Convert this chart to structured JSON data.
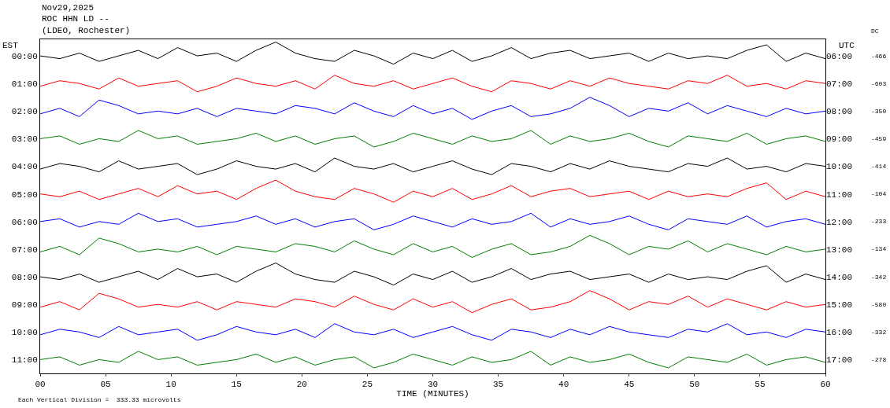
{
  "chart_data": {
    "type": "line",
    "title": "Nov29,2025",
    "subtitle": "ROC HHN LD --\n(LDEO, Rochester)",
    "xlabel": "TIME (MINUTES)",
    "ylabel": "EST",
    "y2label": "UTC",
    "annotations": [
      "Each Vertical Division =  333.33 microvolts",
      "DC",
      "-466",
      "-603",
      "-350",
      "-459",
      "-414",
      "-104",
      "-233",
      "-134",
      "-342",
      "-580",
      "-332",
      "-278"
    ],
    "x": [
      0,
      1.5,
      3,
      4.5,
      6,
      7.5,
      9,
      10.5,
      12,
      13.5,
      15,
      16.5,
      18,
      19.5,
      21,
      22.5,
      24,
      25.5,
      27,
      28.5,
      30,
      31.5,
      33,
      34.5,
      36,
      37.5,
      39,
      40.5,
      42,
      43.5,
      45,
      46.5,
      48,
      49.5,
      51,
      52.5,
      54,
      55.5,
      57,
      58.5,
      60
    ],
    "xlim": [
      0,
      60
    ],
    "xticks": [
      {
        "value": 0,
        "label": "00"
      },
      {
        "value": 5,
        "label": "05"
      },
      {
        "value": 10,
        "label": "10"
      },
      {
        "value": 15,
        "label": "15"
      },
      {
        "value": 20,
        "label": "20"
      },
      {
        "value": 25,
        "label": "25"
      },
      {
        "value": 30,
        "label": "30"
      },
      {
        "value": 35,
        "label": "35"
      },
      {
        "value": 40,
        "label": "40"
      },
      {
        "value": 45,
        "label": "45"
      },
      {
        "value": 50,
        "label": "50"
      },
      {
        "value": 55,
        "label": "55"
      },
      {
        "value": 60,
        "label": "60"
      }
    ],
    "ylim": [
      11.5,
      -0.6
    ],
    "yticks": [
      {
        "value": 0,
        "label": "00:00"
      },
      {
        "value": 1,
        "label": "01:00"
      },
      {
        "value": 2,
        "label": "02:00"
      },
      {
        "value": 3,
        "label": "03:00"
      },
      {
        "value": 4,
        "label": "04:00"
      },
      {
        "value": 5,
        "label": "05:00"
      },
      {
        "value": 6,
        "label": "06:00"
      },
      {
        "value": 7,
        "label": "07:00"
      },
      {
        "value": 8,
        "label": "08:00"
      },
      {
        "value": 9,
        "label": "09:00"
      },
      {
        "value": 10,
        "label": "10:00"
      },
      {
        "value": 11,
        "label": "11:00"
      }
    ],
    "y2lim": [
      17.5,
      5.4
    ],
    "y2ticks": [
      {
        "value": 6,
        "label": "06:00"
      },
      {
        "value": 7,
        "label": "07:00"
      },
      {
        "value": 8,
        "label": "08:00"
      },
      {
        "value": 9,
        "label": "09:00"
      },
      {
        "value": 10,
        "label": "10:00"
      },
      {
        "value": 11,
        "label": "11:00"
      },
      {
        "value": 12,
        "label": "12:00"
      },
      {
        "value": 13,
        "label": "13:00"
      },
      {
        "value": 14,
        "label": "14:00"
      },
      {
        "value": 15,
        "label": "15:00"
      },
      {
        "value": 16,
        "label": "16:00"
      },
      {
        "value": 17,
        "label": "17:00"
      }
    ],
    "grid": false,
    "marker": "none",
    "line_style": "solid",
    "series": [
      {
        "color": "#000000",
        "values": [
          0.0,
          0.1,
          -0.1,
          0.2,
          0.0,
          -0.2,
          0.1,
          -0.3,
          0.0,
          -0.1,
          0.2,
          -0.2,
          -0.5,
          -0.1,
          0.1,
          0.2,
          -0.2,
          0.0,
          0.3,
          -0.1,
          0.1,
          -0.2,
          0.2,
          0.0,
          -0.3,
          0.1,
          -0.1,
          -0.2,
          0.1,
          0.0,
          -0.1,
          0.2,
          -0.1,
          0.1,
          0.0,
          0.1,
          -0.2,
          -0.4,
          0.2,
          -0.1,
          0.1
        ]
      },
      {
        "color": "#ff0000",
        "values": [
          1.1,
          0.9,
          1.0,
          1.2,
          0.8,
          1.1,
          1.0,
          0.9,
          1.3,
          1.1,
          0.8,
          1.0,
          1.1,
          0.9,
          1.2,
          0.7,
          1.0,
          1.1,
          0.9,
          1.2,
          1.0,
          0.8,
          1.1,
          1.3,
          0.9,
          1.0,
          1.2,
          0.9,
          1.1,
          0.8,
          1.0,
          1.1,
          1.2,
          0.9,
          1.0,
          0.7,
          1.1,
          1.0,
          1.2,
          0.9,
          1.0
        ]
      },
      {
        "color": "#0000ff",
        "values": [
          2.1,
          1.9,
          2.2,
          1.6,
          1.8,
          2.1,
          2.0,
          2.1,
          1.9,
          2.2,
          1.9,
          2.0,
          2.1,
          1.8,
          1.9,
          2.1,
          1.7,
          2.0,
          2.2,
          1.8,
          2.1,
          1.9,
          2.3,
          2.0,
          1.8,
          2.2,
          2.1,
          1.9,
          1.5,
          1.8,
          2.2,
          1.9,
          2.0,
          1.7,
          2.1,
          1.8,
          2.0,
          2.2,
          1.9,
          2.1,
          2.0
        ]
      },
      {
        "color": "#008000",
        "values": [
          3.0,
          2.9,
          3.2,
          3.0,
          3.1,
          2.7,
          3.0,
          2.9,
          3.2,
          3.1,
          3.0,
          2.8,
          3.1,
          2.9,
          3.2,
          3.0,
          2.9,
          3.3,
          3.1,
          2.8,
          3.0,
          3.2,
          2.9,
          3.1,
          3.0,
          2.7,
          3.2,
          2.9,
          3.1,
          3.0,
          2.8,
          3.1,
          3.3,
          2.9,
          3.0,
          3.1,
          2.8,
          3.2,
          3.0,
          2.9,
          3.1
        ]
      },
      {
        "color": "#000000",
        "values": [
          4.1,
          3.9,
          4.0,
          4.2,
          3.8,
          4.1,
          4.0,
          3.9,
          4.3,
          4.1,
          3.8,
          4.0,
          4.1,
          3.9,
          4.2,
          3.7,
          4.0,
          4.1,
          3.9,
          4.2,
          4.0,
          3.8,
          4.1,
          4.3,
          3.9,
          4.0,
          4.2,
          3.9,
          4.1,
          3.8,
          4.0,
          4.1,
          4.2,
          3.9,
          4.0,
          3.7,
          4.1,
          4.0,
          4.2,
          3.9,
          4.0
        ]
      },
      {
        "color": "#ff0000",
        "values": [
          5.0,
          5.1,
          4.9,
          5.2,
          5.0,
          4.8,
          5.1,
          4.7,
          5.0,
          4.9,
          5.2,
          4.8,
          4.5,
          4.9,
          5.1,
          5.2,
          4.8,
          5.0,
          5.3,
          4.9,
          5.1,
          4.8,
          5.2,
          5.0,
          4.7,
          5.1,
          4.9,
          4.8,
          5.1,
          5.0,
          4.9,
          5.2,
          4.9,
          5.1,
          5.0,
          5.1,
          4.8,
          4.6,
          5.2,
          4.9,
          5.1
        ]
      },
      {
        "color": "#0000ff",
        "values": [
          6.0,
          5.9,
          6.2,
          6.0,
          6.1,
          5.7,
          6.0,
          5.9,
          6.2,
          6.1,
          6.0,
          5.8,
          6.1,
          5.9,
          6.2,
          6.0,
          5.9,
          6.3,
          6.1,
          5.8,
          6.0,
          6.2,
          5.9,
          6.1,
          6.0,
          5.7,
          6.2,
          5.9,
          6.1,
          6.0,
          5.8,
          6.1,
          6.3,
          5.9,
          6.0,
          6.1,
          5.8,
          6.2,
          6.0,
          5.9,
          6.1
        ]
      },
      {
        "color": "#008000",
        "values": [
          7.1,
          6.9,
          7.2,
          6.6,
          6.8,
          7.1,
          7.0,
          7.1,
          6.9,
          7.2,
          6.9,
          7.0,
          7.1,
          6.8,
          6.9,
          7.1,
          6.7,
          7.0,
          7.2,
          6.8,
          7.1,
          6.9,
          7.3,
          7.0,
          6.8,
          7.2,
          7.1,
          6.9,
          6.5,
          6.8,
          7.2,
          6.9,
          7.0,
          6.7,
          7.1,
          6.8,
          7.0,
          7.2,
          6.9,
          7.1,
          7.0
        ]
      },
      {
        "color": "#000000",
        "values": [
          8.0,
          8.1,
          7.9,
          8.2,
          8.0,
          7.8,
          8.1,
          7.7,
          8.0,
          7.9,
          8.2,
          7.8,
          7.5,
          7.9,
          8.1,
          8.2,
          7.8,
          8.0,
          8.3,
          7.9,
          8.1,
          7.8,
          8.2,
          8.0,
          7.7,
          8.1,
          7.9,
          7.8,
          8.1,
          8.0,
          7.9,
          8.2,
          7.9,
          8.1,
          8.0,
          8.1,
          7.8,
          7.6,
          8.2,
          7.9,
          8.1
        ]
      },
      {
        "color": "#ff0000",
        "values": [
          9.1,
          8.9,
          9.2,
          8.6,
          8.8,
          9.1,
          9.0,
          9.1,
          8.9,
          9.2,
          8.9,
          9.0,
          9.1,
          8.8,
          8.9,
          9.1,
          8.7,
          9.0,
          9.2,
          8.8,
          9.1,
          8.9,
          9.3,
          9.0,
          8.8,
          9.2,
          9.1,
          8.9,
          8.5,
          8.8,
          9.2,
          8.9,
          9.0,
          8.7,
          9.1,
          8.8,
          9.0,
          9.2,
          8.9,
          9.1,
          9.0
        ]
      },
      {
        "color": "#0000ff",
        "values": [
          10.1,
          9.9,
          10.0,
          10.2,
          9.8,
          10.1,
          10.0,
          9.9,
          10.3,
          10.1,
          9.8,
          10.0,
          10.1,
          9.9,
          10.2,
          9.7,
          10.0,
          10.1,
          9.9,
          10.2,
          10.0,
          9.8,
          10.1,
          10.3,
          9.9,
          10.0,
          10.2,
          9.9,
          10.1,
          9.8,
          10.0,
          10.1,
          10.2,
          9.9,
          10.0,
          9.7,
          10.1,
          10.0,
          10.2,
          9.9,
          10.0
        ]
      },
      {
        "color": "#008000",
        "values": [
          11.0,
          10.9,
          11.2,
          11.0,
          11.1,
          10.7,
          11.0,
          10.9,
          11.2,
          11.1,
          11.0,
          10.8,
          11.1,
          10.9,
          11.2,
          11.0,
          10.9,
          11.3,
          11.1,
          10.8,
          11.0,
          11.2,
          10.9,
          11.1,
          11.0,
          10.7,
          11.2,
          10.9,
          11.1,
          11.0,
          10.8,
          11.1,
          11.3,
          10.9,
          11.0,
          11.1,
          10.8,
          11.2,
          11.0,
          10.9,
          11.1
        ]
      }
    ]
  }
}
